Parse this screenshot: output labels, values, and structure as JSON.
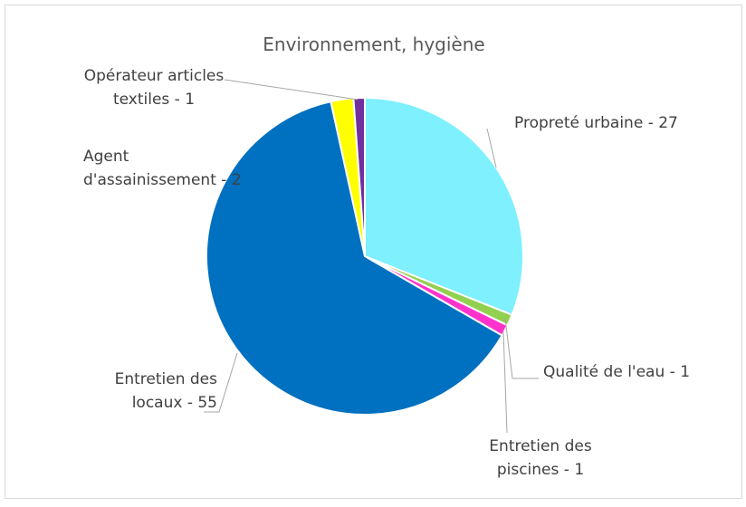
{
  "chart_data": {
    "type": "pie",
    "title": "Environnement, hygiène",
    "values": [
      27,
      1,
      1,
      55,
      2,
      1
    ],
    "value_labels": [
      "Propreté urbaine - 27",
      "Qualité de l'eau - 1",
      "Entretien des\npiscines - 1",
      "Entretien des\nlocaux - 55",
      "Agent\nd'assainissement - 2",
      "Opérateur articles\ntextiles - 1"
    ],
    "colors": [
      "#7ef0fe",
      "#92d050",
      "#ff33cc",
      "#0070c0",
      "#ffff00",
      "#7030a0"
    ]
  }
}
